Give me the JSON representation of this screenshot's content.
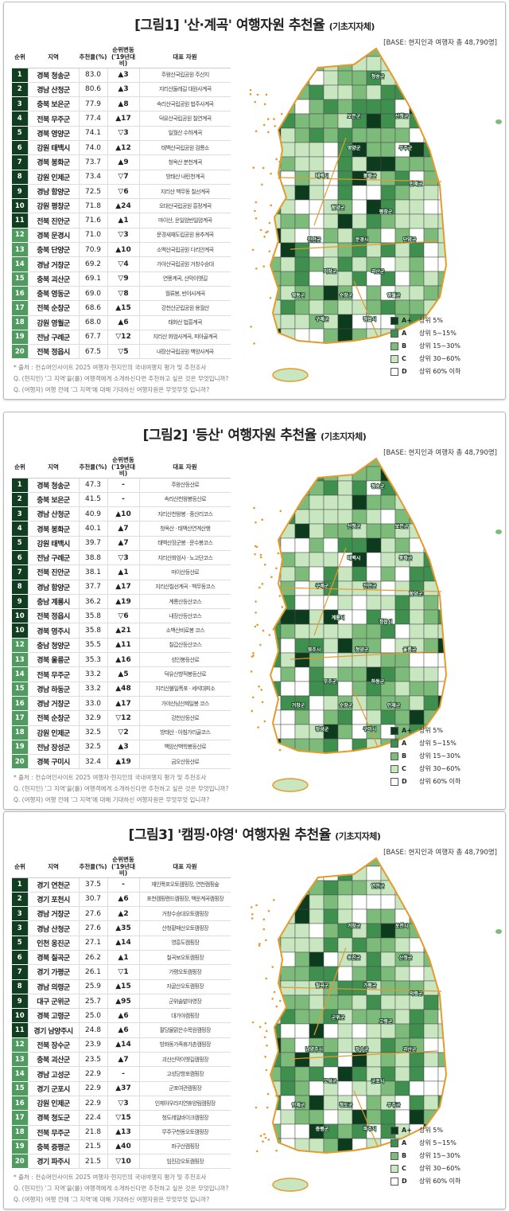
{
  "colors": {
    "top": "#113d20",
    "second": "#4f9b60",
    "outline": "#e59a2c",
    "tiers": {
      "A+": "#0d3b1e",
      "A": "#3f8f4f",
      "B": "#7dbb7a",
      "C": "#c8e6c0",
      "D": "#ffffff"
    }
  },
  "headers": {
    "rank": "순위",
    "region": "지역",
    "rate": "추천율(%)",
    "change": "순위변동 ('19년대비)",
    "resource": "대표 자원"
  },
  "legend": [
    {
      "key": "A+",
      "label": "상위 5%"
    },
    {
      "key": "A",
      "label": "상위 5~15%"
    },
    {
      "key": "B",
      "label": "상위 15~30%"
    },
    {
      "key": "C",
      "label": "상위 30~60%"
    },
    {
      "key": "D",
      "label": "상위 60% 이하"
    }
  ],
  "footnotes": [
    "* 출처 : 컨슈머인사이트 2025 여행자·현지인의 국내여행지 평가 및 추천조사",
    "Q. (현지인) '그 지역'을(를) 여행객에게 소개하신다면 추천하고 싶은 것은 무엇입니까?",
    "Q. (여행자) 여행 전에 '그 지역'에 대해 기대하신 여행자원은 무엇무엇 입니까?"
  ],
  "panels": [
    {
      "title": "[그림1] '산·계곡' 여행자원 추천율",
      "subtitle": "(기초지자체)",
      "base": "[BASE: 현지인과 여행자 총 48,790명]",
      "rows": [
        [
          "1",
          "경북 청송군",
          "83.0",
          "▲3",
          "주왕산국립공원 주산지"
        ],
        [
          "2",
          "경남 산청군",
          "80.6",
          "▲3",
          "지리산둘레길 대원사계곡"
        ],
        [
          "3",
          "충북 보은군",
          "77.9",
          "▲8",
          "속리산국립공원 법주사계곡"
        ],
        [
          "4",
          "전북 무주군",
          "77.4",
          "▲17",
          "덕유산국립공원 칠연계곡"
        ],
        [
          "5",
          "경북 영양군",
          "74.1",
          "▽3",
          "일월산 수하계곡"
        ],
        [
          "6",
          "강원 태백시",
          "74.0",
          "▲12",
          "태백산국립공원 검룡소"
        ],
        [
          "7",
          "경북 봉화군",
          "73.7",
          "▲9",
          "청옥산 분천계곡"
        ],
        [
          "8",
          "강원 인제군",
          "73.4",
          "▽7",
          "방태산 내린천계곡"
        ],
        [
          "9",
          "경남 함양군",
          "72.5",
          "▽6",
          "지리산 백무동 칠선계곡"
        ],
        [
          "10",
          "강원 평창군",
          "71.8",
          "▲24",
          "오대산국립공원 흥정계곡"
        ],
        [
          "11",
          "전북 진안군",
          "71.6",
          "▲1",
          "마이산, 운일암반일암계곡"
        ],
        [
          "12",
          "경북 문경시",
          "71.0",
          "▽3",
          "문경새재도립공원 용추계곡"
        ],
        [
          "13",
          "충북 단양군",
          "70.9",
          "▲10",
          "소백산국립공원 다리안계곡"
        ],
        [
          "14",
          "경남 거창군",
          "69.2",
          "▽4",
          "가야산국립공원 거창수승대"
        ],
        [
          "15",
          "충북 괴산군",
          "69.1",
          "▽9",
          "연풍계곡, 산막이옛길"
        ],
        [
          "16",
          "충북 영동군",
          "69.0",
          "▽8",
          "월류봉, 반야사계곡"
        ],
        [
          "17",
          "전북 순창군",
          "68.6",
          "▲15",
          "강천산군립공원 용궐산"
        ],
        [
          "18",
          "강원 영월군",
          "68.0",
          "▲6",
          "태화산 법흥계곡"
        ],
        [
          "19",
          "전남 구례군",
          "67.7",
          "▽12",
          "지리산 화엄사계곡, 피아골계곡"
        ],
        [
          "20",
          "전북 정읍시",
          "67.5",
          "▽5",
          "내장산국립공원 백양사계곡"
        ]
      ]
    },
    {
      "title": "[그림2] '등산' 여행자원 추천율",
      "subtitle": "(기초지자체)",
      "base": "[BASE: 현지인과 여행자 총 48,790명]",
      "rows": [
        [
          "1",
          "경북 청송군",
          "47.3",
          "-",
          "주왕산등산로"
        ],
        [
          "2",
          "충북 보은군",
          "41.5",
          "-",
          "속리산천왕봉등산로"
        ],
        [
          "3",
          "경남 산청군",
          "40.9",
          "▲10",
          "지리산천왕봉 · 중산리코스"
        ],
        [
          "4",
          "경북 봉화군",
          "40.1",
          "▲7",
          "청옥산 · 태백산연계산행"
        ],
        [
          "5",
          "강원 태백시",
          "39.7",
          "▲7",
          "태백산장군봉 · 문수봉코스"
        ],
        [
          "6",
          "전남 구례군",
          "38.8",
          "▽3",
          "지리산화엄사 · 노고단코스"
        ],
        [
          "7",
          "전북 진안군",
          "38.1",
          "▲1",
          "마이산등산로"
        ],
        [
          "8",
          "경남 함양군",
          "37.7",
          "▲17",
          "지리산칠선계곡 · 백무동코스"
        ],
        [
          "9",
          "충남 계룡시",
          "36.2",
          "▲19",
          "계룡산등산코스"
        ],
        [
          "10",
          "전북 정읍시",
          "35.8",
          "▽6",
          "내장산등산코스"
        ],
        [
          "10",
          "경북 영주시",
          "35.8",
          "▲21",
          "소백산비로봉 코스"
        ],
        [
          "12",
          "충남 청양군",
          "35.5",
          "▲11",
          "칠갑산등산코스"
        ],
        [
          "13",
          "경북 울릉군",
          "35.3",
          "▲16",
          "성인봉등산로"
        ],
        [
          "14",
          "전북 무주군",
          "33.2",
          "▲5",
          "덕유산향적봉등산로"
        ],
        [
          "15",
          "경남 하동군",
          "33.2",
          "▲48",
          "지리산불일폭포 · 세석대피소"
        ],
        [
          "16",
          "경남 거창군",
          "33.0",
          "▲17",
          "가야산남산제일봉 코스"
        ],
        [
          "17",
          "전북 순창군",
          "32.9",
          "▽12",
          "강천산등산로"
        ],
        [
          "18",
          "강원 인제군",
          "32.5",
          "▽2",
          "방태산 · 아침가리골코스"
        ],
        [
          "19",
          "전남 장성군",
          "32.5",
          "▲3",
          "백암산백학봉등산로"
        ],
        [
          "20",
          "경북 구미시",
          "32.4",
          "▲19",
          "금오산등산로"
        ]
      ]
    },
    {
      "title": "[그림3] '캠핑·야영' 여행자원 추천율",
      "subtitle": "(기초지자체)",
      "base": "[BASE: 현지인과 여행자 총 48,790명]",
      "rows": [
        [
          "1",
          "경기 연천군",
          "37.5",
          "-",
          "재인폭포오토캠핑장, 연천캠핑숲"
        ],
        [
          "2",
          "경기 포천시",
          "30.7",
          "▲6",
          "포천캠핑랜드캠핑장, 백운계곡캠핑장"
        ],
        [
          "3",
          "경남 거창군",
          "27.6",
          "▲2",
          "거창수승대오토캠핑장"
        ],
        [
          "3",
          "경남 산청군",
          "27.6",
          "▲35",
          "산청황매산오토캠핑장"
        ],
        [
          "5",
          "인천 옹진군",
          "27.1",
          "▲14",
          "영흥도캠핑장"
        ],
        [
          "6",
          "경북 칠곡군",
          "26.2",
          "▲1",
          "칠곡보오토캠핑장"
        ],
        [
          "7",
          "경기 가평군",
          "26.1",
          "▽1",
          "가평오토캠핑장"
        ],
        [
          "8",
          "경남 의령군",
          "25.9",
          "▲15",
          "자굴산오토캠핑장"
        ],
        [
          "9",
          "대구 군위군",
          "25.7",
          "▲95",
          "군위솔밭야영장"
        ],
        [
          "10",
          "경북 고령군",
          "25.0",
          "▲6",
          "대가야캠핑장"
        ],
        [
          "11",
          "경기 남양주시",
          "24.8",
          "▲6",
          "팔당물맑은수목원캠핑장"
        ],
        [
          "12",
          "전북 장수군",
          "23.9",
          "▲14",
          "방화동가족휴가촌캠핑장"
        ],
        [
          "13",
          "충북 괴산군",
          "23.5",
          "▲7",
          "괴산산막이옛길캠핑장"
        ],
        [
          "14",
          "경남 고성군",
          "22.9",
          "-",
          "고성당항포캠핑장"
        ],
        [
          "15",
          "경기 군포시",
          "22.9",
          "▲37",
          "군포여관캠핑장"
        ],
        [
          "16",
          "강원 인제군",
          "22.9",
          "▽3",
          "인제아우라지연휴양림캠핑장"
        ],
        [
          "17",
          "경북 청도군",
          "22.4",
          "▽15",
          "청도레일바이크캠핑장"
        ],
        [
          "18",
          "전북 무주군",
          "21.8",
          "▲13",
          "무주구천동오토캠핑장"
        ],
        [
          "19",
          "충북 증평군",
          "21.5",
          "▲40",
          "좌구산캠핑장"
        ],
        [
          "20",
          "경기 파주시",
          "21.5",
          "▽10",
          "임진강오토캠핑장"
        ]
      ]
    }
  ]
}
